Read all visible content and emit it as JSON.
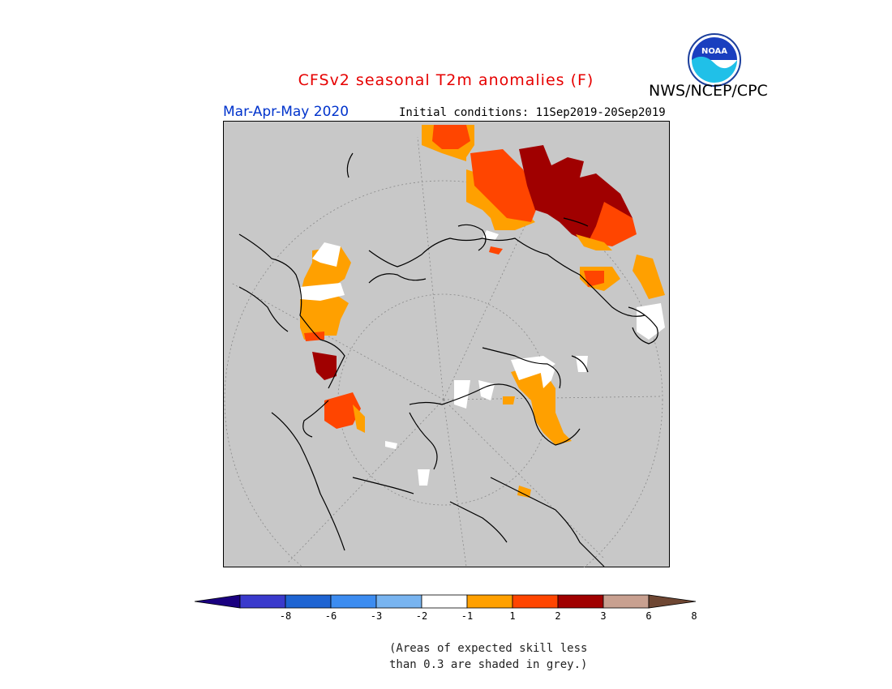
{
  "header": {
    "title": "CFSv2 seasonal T2m anomalies (F)",
    "agency": "NWS/NCEP/CPC",
    "logo_text": "NOAA",
    "season": "Mar-Apr-May 2020",
    "initial_conditions": "Initial conditions: 11Sep2019-20Sep2019"
  },
  "colors": {
    "title": "#e60000",
    "season": "#0033cc",
    "background_grey": "#c8c8c8",
    "land_outline": "#000000"
  },
  "legend": {
    "bins": [
      {
        "color": "#1a0080"
      },
      {
        "color": "#3a3acc"
      },
      {
        "color": "#1e64d2"
      },
      {
        "color": "#3c8cf0"
      },
      {
        "color": "#78b4f0"
      },
      {
        "color": "#ffffff"
      },
      {
        "color": "#ffa000"
      },
      {
        "color": "#ff4500"
      },
      {
        "color": "#a00000"
      },
      {
        "color": "#c8a090"
      },
      {
        "color": "#6e4632"
      }
    ],
    "labels": [
      "-8",
      "-6",
      "-3",
      "-2",
      "-1",
      "1",
      "2",
      "3",
      "6",
      "8"
    ]
  },
  "note": {
    "line1": "(Areas of expected skill less",
    "line2": "than 0.3 are shaded in grey.)"
  }
}
